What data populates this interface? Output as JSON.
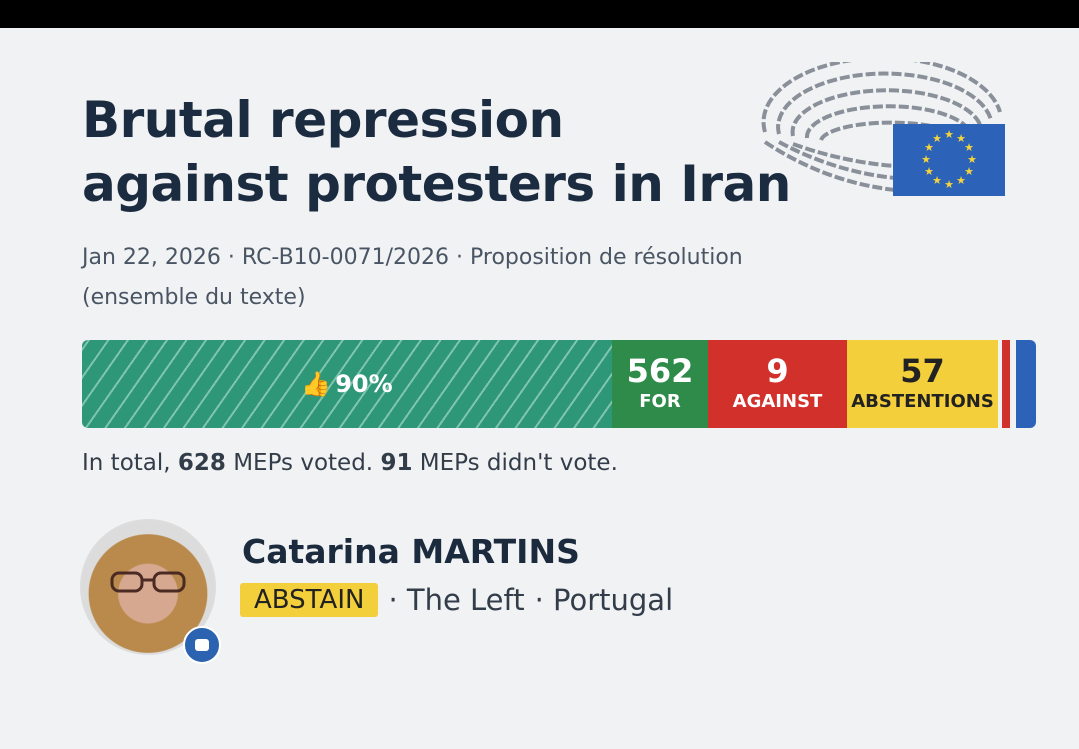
{
  "title_line1": "Brutal repression",
  "title_line2": "against protesters in Iran",
  "meta": {
    "date": "Jan 22, 2026",
    "reference": "RC-B10-0071/2026",
    "type": "Proposition de résolution",
    "scope": "(ensemble du texte)",
    "separator": "·"
  },
  "vote_bar": {
    "percent_label": "90%",
    "for": {
      "count": "562",
      "label": "FOR"
    },
    "against": {
      "count": "9",
      "label": "AGAINST"
    },
    "abstentions": {
      "count": "57",
      "label": "ABSTENTIONS"
    }
  },
  "total": {
    "prefix": "In total, ",
    "voted": "628",
    "mid": " MEPs voted. ",
    "not_voted": "91",
    "suffix": " MEPs didn't vote."
  },
  "member": {
    "name": "Catarina MARTINS",
    "vote": "ABSTAIN",
    "group": "· The Left",
    "country": "· Portugal"
  },
  "colors": {
    "for": "#2e8b4a",
    "against": "#d2302a",
    "abstain": "#f3cf3c",
    "eu_blue": "#2c63b8"
  }
}
